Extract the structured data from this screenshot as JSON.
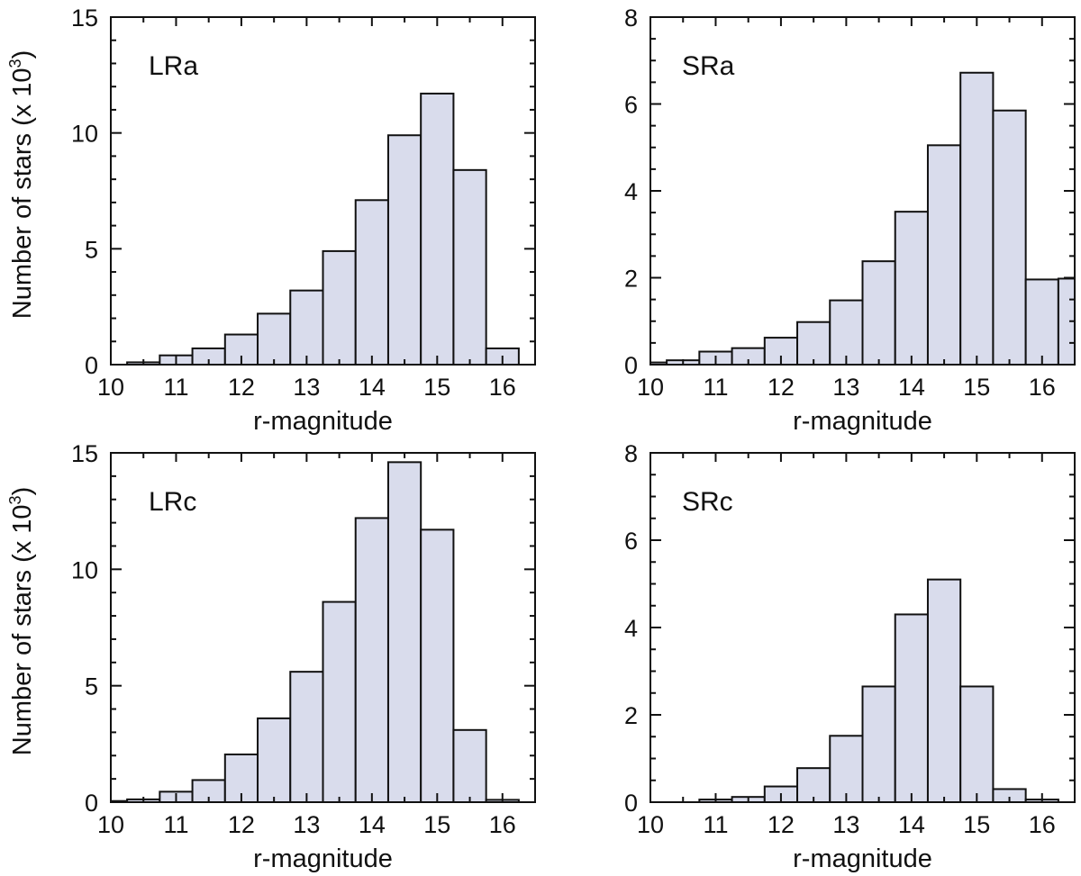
{
  "figure": {
    "bar_fill": "#d9dcec",
    "bar_stroke": "#111111",
    "ylabel_rows": [
      {
        "prefix": "Number of stars (x 10",
        "exponent": "3",
        "suffix": ")"
      },
      {
        "prefix": "Number of stars  (x 10",
        "exponent": "3",
        "suffix": ")"
      }
    ]
  },
  "chart_data": [
    {
      "type": "bar",
      "panel_label": "LRa",
      "xlabel": "r-magnitude",
      "ylabel": "Number of stars (x 10^3)",
      "xlim": [
        10,
        16.5
      ],
      "ylim": [
        0,
        15
      ],
      "xticks": [
        10,
        11,
        12,
        13,
        14,
        15,
        16
      ],
      "yticks": [
        0,
        5,
        10,
        15
      ],
      "bin_edges": [
        10.25,
        10.75,
        11.25,
        11.75,
        12.25,
        12.75,
        13.25,
        13.75,
        14.25,
        14.75,
        15.25,
        15.75,
        16.25
      ],
      "bins": [
        {
          "start": 10.25,
          "end": 10.75,
          "value": 0.1
        },
        {
          "start": 10.75,
          "end": 11.25,
          "value": 0.4
        },
        {
          "start": 11.25,
          "end": 11.75,
          "value": 0.7
        },
        {
          "start": 11.75,
          "end": 12.25,
          "value": 1.3
        },
        {
          "start": 12.25,
          "end": 12.75,
          "value": 2.2
        },
        {
          "start": 12.75,
          "end": 13.25,
          "value": 3.2
        },
        {
          "start": 13.25,
          "end": 13.75,
          "value": 4.9
        },
        {
          "start": 13.75,
          "end": 14.25,
          "value": 7.1
        },
        {
          "start": 14.25,
          "end": 14.75,
          "value": 9.9
        },
        {
          "start": 14.75,
          "end": 15.25,
          "value": 11.7
        },
        {
          "start": 15.25,
          "end": 15.75,
          "value": 8.4
        },
        {
          "start": 15.75,
          "end": 16.25,
          "value": 0.7
        }
      ]
    },
    {
      "type": "bar",
      "panel_label": "SRa",
      "xlabel": "r-magnitude",
      "ylabel": "",
      "xlim": [
        10,
        16.5
      ],
      "ylim": [
        0,
        8
      ],
      "xticks": [
        10,
        11,
        12,
        13,
        14,
        15,
        16
      ],
      "yticks": [
        0,
        2,
        4,
        6,
        8
      ],
      "bins": [
        {
          "start": 10.0,
          "end": 10.25,
          "value": 0.05
        },
        {
          "start": 10.25,
          "end": 10.75,
          "value": 0.1
        },
        {
          "start": 10.75,
          "end": 11.25,
          "value": 0.3
        },
        {
          "start": 11.25,
          "end": 11.75,
          "value": 0.38
        },
        {
          "start": 11.75,
          "end": 12.25,
          "value": 0.62
        },
        {
          "start": 12.25,
          "end": 12.75,
          "value": 0.98
        },
        {
          "start": 12.75,
          "end": 13.25,
          "value": 1.48
        },
        {
          "start": 13.25,
          "end": 13.75,
          "value": 2.38
        },
        {
          "start": 13.75,
          "end": 14.25,
          "value": 3.52
        },
        {
          "start": 14.25,
          "end": 14.75,
          "value": 5.05
        },
        {
          "start": 14.75,
          "end": 15.25,
          "value": 6.72
        },
        {
          "start": 15.25,
          "end": 15.75,
          "value": 5.85
        },
        {
          "start": 15.75,
          "end": 16.25,
          "value": 1.96
        },
        {
          "start": 16.25,
          "end": 16.5,
          "value": 1.98
        }
      ]
    },
    {
      "type": "bar",
      "panel_label": "LRc",
      "xlabel": "r-magnitude",
      "ylabel": "Number of stars  (x 10^3)",
      "xlim": [
        10,
        16.5
      ],
      "ylim": [
        0,
        15
      ],
      "xticks": [
        10,
        11,
        12,
        13,
        14,
        15,
        16
      ],
      "yticks": [
        0,
        5,
        10,
        15
      ],
      "bins": [
        {
          "start": 9.75,
          "end": 10.25,
          "value": 0.05
        },
        {
          "start": 10.25,
          "end": 10.75,
          "value": 0.12
        },
        {
          "start": 10.75,
          "end": 11.25,
          "value": 0.45
        },
        {
          "start": 11.25,
          "end": 11.75,
          "value": 0.95
        },
        {
          "start": 11.75,
          "end": 12.25,
          "value": 2.05
        },
        {
          "start": 12.25,
          "end": 12.75,
          "value": 3.6
        },
        {
          "start": 12.75,
          "end": 13.25,
          "value": 5.6
        },
        {
          "start": 13.25,
          "end": 13.75,
          "value": 8.6
        },
        {
          "start": 13.75,
          "end": 14.25,
          "value": 12.2
        },
        {
          "start": 14.25,
          "end": 14.75,
          "value": 14.6
        },
        {
          "start": 14.75,
          "end": 15.25,
          "value": 11.7
        },
        {
          "start": 15.25,
          "end": 15.75,
          "value": 3.1
        },
        {
          "start": 15.75,
          "end": 16.25,
          "value": 0.1
        }
      ]
    },
    {
      "type": "bar",
      "panel_label": "SRc",
      "xlabel": "r-magnitude",
      "ylabel": "",
      "xlim": [
        10,
        16.5
      ],
      "ylim": [
        0,
        8
      ],
      "xticks": [
        10,
        11,
        12,
        13,
        14,
        15,
        16
      ],
      "yticks": [
        0,
        2,
        4,
        6,
        8
      ],
      "bins": [
        {
          "start": 10.75,
          "end": 11.25,
          "value": 0.06
        },
        {
          "start": 11.25,
          "end": 11.75,
          "value": 0.12
        },
        {
          "start": 11.75,
          "end": 12.25,
          "value": 0.36
        },
        {
          "start": 12.25,
          "end": 12.75,
          "value": 0.78
        },
        {
          "start": 12.75,
          "end": 13.25,
          "value": 1.52
        },
        {
          "start": 13.25,
          "end": 13.75,
          "value": 2.65
        },
        {
          "start": 13.75,
          "end": 14.25,
          "value": 4.3
        },
        {
          "start": 14.25,
          "end": 14.75,
          "value": 5.1
        },
        {
          "start": 14.75,
          "end": 15.25,
          "value": 2.65
        },
        {
          "start": 15.25,
          "end": 15.75,
          "value": 0.3
        },
        {
          "start": 15.75,
          "end": 16.25,
          "value": 0.06
        }
      ]
    }
  ]
}
